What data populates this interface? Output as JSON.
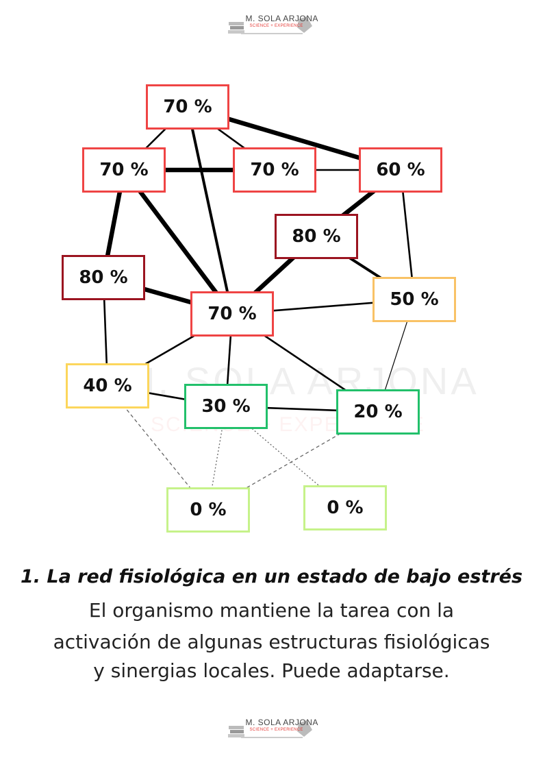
{
  "logo": {
    "name": "M. SOLA ARJONA",
    "tagline": "SCIENCE + EXPERIENCE"
  },
  "network": {
    "nodes": [
      {
        "id": "n1",
        "label": "70 %",
        "level": "red"
      },
      {
        "id": "n2",
        "label": "70 %",
        "level": "red"
      },
      {
        "id": "n3",
        "label": "70 %",
        "level": "red"
      },
      {
        "id": "n4",
        "label": "60 %",
        "level": "red"
      },
      {
        "id": "n5",
        "label": "80 %",
        "level": "darkred"
      },
      {
        "id": "n6",
        "label": "80 %",
        "level": "darkred"
      },
      {
        "id": "n7",
        "label": "70 %",
        "level": "red"
      },
      {
        "id": "n8",
        "label": "50 %",
        "level": "orange"
      },
      {
        "id": "n9",
        "label": "40 %",
        "level": "yellow"
      },
      {
        "id": "n10",
        "label": "30 %",
        "level": "green"
      },
      {
        "id": "n11",
        "label": "20 %",
        "level": "green"
      },
      {
        "id": "n12",
        "label": "0 %",
        "level": "lightgreen"
      },
      {
        "id": "n13",
        "label": "0 %",
        "level": "lightgreen"
      }
    ],
    "edges": [
      {
        "from": "n1",
        "to": "n2",
        "style": "normal"
      },
      {
        "from": "n1",
        "to": "n3",
        "style": "normal"
      },
      {
        "from": "n1",
        "to": "n4",
        "style": "heavy"
      },
      {
        "from": "n1",
        "to": "n7",
        "style": "thick"
      },
      {
        "from": "n2",
        "to": "n3",
        "style": "heavy"
      },
      {
        "from": "n3",
        "to": "n4",
        "style": "normal"
      },
      {
        "from": "n2",
        "to": "n6",
        "style": "heavy"
      },
      {
        "from": "n2",
        "to": "n7",
        "style": "heavy"
      },
      {
        "from": "n4",
        "to": "n5",
        "style": "heavy"
      },
      {
        "from": "n4",
        "to": "n8",
        "style": "normal"
      },
      {
        "from": "n5",
        "to": "n7",
        "style": "heavy"
      },
      {
        "from": "n5",
        "to": "n8",
        "style": "thick"
      },
      {
        "from": "n6",
        "to": "n7",
        "style": "heavy"
      },
      {
        "from": "n6",
        "to": "n9",
        "style": "normal"
      },
      {
        "from": "n7",
        "to": "n8",
        "style": "normal"
      },
      {
        "from": "n7",
        "to": "n9",
        "style": "normal"
      },
      {
        "from": "n7",
        "to": "n10",
        "style": "normal"
      },
      {
        "from": "n7",
        "to": "n11",
        "style": "normal"
      },
      {
        "from": "n8",
        "to": "n11",
        "style": "thin"
      },
      {
        "from": "n9",
        "to": "n10",
        "style": "normal"
      },
      {
        "from": "n10",
        "to": "n11",
        "style": "normal"
      },
      {
        "from": "n9",
        "to": "n12",
        "style": "dashed"
      },
      {
        "from": "n10",
        "to": "n12",
        "style": "dotted"
      },
      {
        "from": "n10",
        "to": "n13",
        "style": "dotted"
      },
      {
        "from": "n11",
        "to": "n12",
        "style": "dashed"
      }
    ]
  },
  "caption": {
    "title": "1. La red fisiológica en un estado de bajo estrés",
    "lines": [
      "El organismo mantiene la tarea con la",
      "activación de algunas estructuras fisiológicas",
      "y sinergias locales. Puede adaptarse."
    ]
  },
  "colors": {
    "red": "#ef4444",
    "darkred": "#9b1420",
    "orange": "#f9c266",
    "yellow": "#fcd65c",
    "green": "#22c06b",
    "lightgreen": "#c6f28a"
  }
}
